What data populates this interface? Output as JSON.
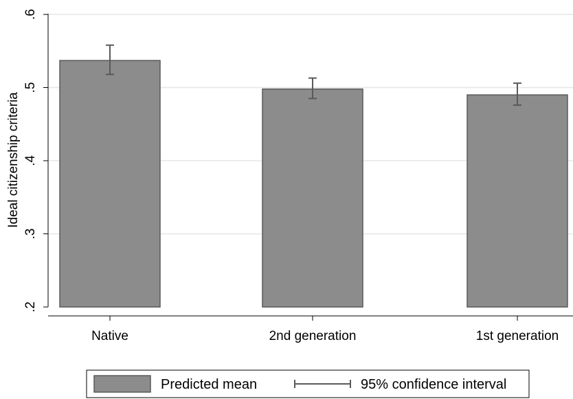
{
  "chart_data": {
    "type": "bar",
    "categories": [
      "Native",
      "2nd generation",
      "1st generation"
    ],
    "series": [
      {
        "name": "Predicted mean",
        "values": [
          0.537,
          0.498,
          0.49
        ],
        "ci_lower": [
          0.518,
          0.485,
          0.476
        ],
        "ci_upper": [
          0.558,
          0.513,
          0.506
        ]
      }
    ],
    "ylabel": "Ideal citizenship criteria",
    "xlabel": "",
    "ylim": [
      0.2,
      0.6
    ],
    "yticks": [
      0.2,
      0.3,
      0.4,
      0.5,
      0.6
    ],
    "ytick_labels": [
      ".2",
      ".3",
      ".4",
      ".5",
      ".6"
    ],
    "grid": true,
    "legend": {
      "position": "bottom",
      "items": [
        "Predicted mean",
        "95% confidence interval"
      ]
    },
    "colors": {
      "bar_fill": "#8c8c8c",
      "bar_stroke": "#595959",
      "error_bar": "#595959",
      "grid": "#e6e6e6"
    }
  }
}
